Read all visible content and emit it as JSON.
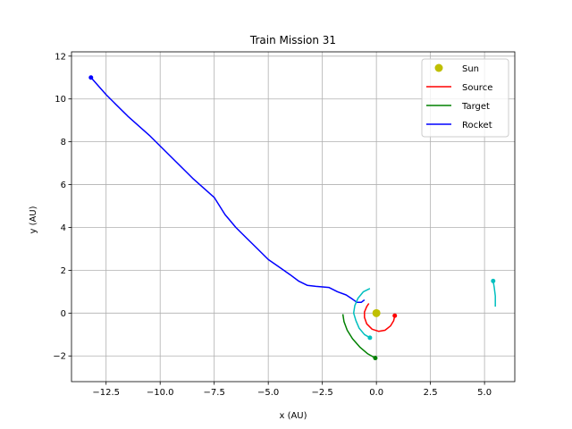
{
  "chart_data": {
    "type": "line",
    "title": "Train Mission 31",
    "xlabel": "x (AU)",
    "ylabel": "y (AU)",
    "xlim": [
      -14.1,
      6.4
    ],
    "ylim": [
      -3.2,
      12.2
    ],
    "x_ticks": [
      -12.5,
      -10.0,
      -7.5,
      -5.0,
      -2.5,
      0.0,
      2.5,
      5.0
    ],
    "x_tick_labels": [
      "−12.5",
      "−10.0",
      "−7.5",
      "−5.0",
      "−2.5",
      "0.0",
      "2.5",
      "5.0"
    ],
    "y_ticks": [
      -2,
      0,
      2,
      4,
      6,
      8,
      10,
      12
    ],
    "y_tick_labels": [
      "−2",
      "0",
      "2",
      "4",
      "6",
      "8",
      "10",
      "12"
    ],
    "grid": true,
    "legend_position": "top-right",
    "legend": [
      {
        "label": "Sun",
        "color": "#bfbf00",
        "kind": "marker"
      },
      {
        "label": "Source",
        "color": "#ff0000",
        "kind": "line"
      },
      {
        "label": "Target",
        "color": "#008000",
        "kind": "line"
      },
      {
        "label": "Rocket",
        "color": "#0000ff",
        "kind": "line"
      }
    ],
    "sun": {
      "x": 0.0,
      "y": 0.0,
      "color": "#bfbf00"
    },
    "series": [
      {
        "name": "Source",
        "color": "#ff0000",
        "points": [
          [
            0.85,
            -0.12
          ],
          [
            0.8,
            -0.35
          ],
          [
            0.65,
            -0.6
          ],
          [
            0.4,
            -0.8
          ],
          [
            0.1,
            -0.85
          ],
          [
            -0.2,
            -0.75
          ],
          [
            -0.45,
            -0.5
          ],
          [
            -0.55,
            -0.2
          ],
          [
            -0.55,
            0.05
          ],
          [
            -0.45,
            0.3
          ],
          [
            -0.35,
            0.45
          ]
        ],
        "end_marker": [
          0.85,
          -0.12
        ]
      },
      {
        "name": "Target",
        "color": "#008000",
        "points": [
          -0.05,
          -2.1
        ],
        "points_path": [
          [
            -0.05,
            -2.1
          ],
          [
            -0.4,
            -1.9
          ],
          [
            -0.75,
            -1.6
          ],
          [
            -1.1,
            -1.2
          ],
          [
            -1.35,
            -0.8
          ],
          [
            -1.5,
            -0.4
          ],
          [
            -1.55,
            -0.05
          ]
        ],
        "end_marker": [
          -0.05,
          -2.1
        ]
      },
      {
        "name": "Rocket",
        "color": "#0000ff",
        "points": [
          [
            -13.2,
            11.0
          ],
          [
            -12.5,
            10.2
          ],
          [
            -11.5,
            9.2
          ],
          [
            -10.5,
            8.3
          ],
          [
            -9.5,
            7.3
          ],
          [
            -8.5,
            6.3
          ],
          [
            -7.5,
            5.4
          ],
          [
            -7.0,
            4.6
          ],
          [
            -6.5,
            4.0
          ],
          [
            -6.0,
            3.5
          ],
          [
            -5.5,
            3.0
          ],
          [
            -5.0,
            2.5
          ],
          [
            -4.5,
            2.15
          ],
          [
            -4.0,
            1.8
          ],
          [
            -3.6,
            1.5
          ],
          [
            -3.2,
            1.3
          ],
          [
            -2.8,
            1.25
          ],
          [
            -2.2,
            1.2
          ],
          [
            -1.8,
            1.0
          ],
          [
            -1.4,
            0.85
          ],
          [
            -1.1,
            0.65
          ],
          [
            -0.9,
            0.5
          ],
          [
            -0.7,
            0.5
          ],
          [
            -0.55,
            0.62
          ]
        ],
        "end_marker": [
          -13.2,
          11.0
        ]
      },
      {
        "name": "",
        "color": "#00bfbf",
        "points": [
          [
            -0.3,
            1.15
          ],
          [
            -0.6,
            1.0
          ],
          [
            -0.85,
            0.7
          ],
          [
            -1.0,
            0.35
          ],
          [
            -1.05,
            0.0
          ],
          [
            -0.95,
            -0.35
          ],
          [
            -0.8,
            -0.7
          ],
          [
            -0.55,
            -1.0
          ],
          [
            -0.3,
            -1.15
          ]
        ],
        "end_marker": [
          -0.3,
          -1.15
        ]
      },
      {
        "name": "",
        "color": "#00bfbf",
        "points": [
          [
            5.4,
            1.5
          ],
          [
            5.45,
            1.2
          ],
          [
            5.5,
            0.8
          ],
          [
            5.5,
            0.3
          ]
        ],
        "end_marker": [
          5.4,
          1.5
        ]
      }
    ]
  }
}
